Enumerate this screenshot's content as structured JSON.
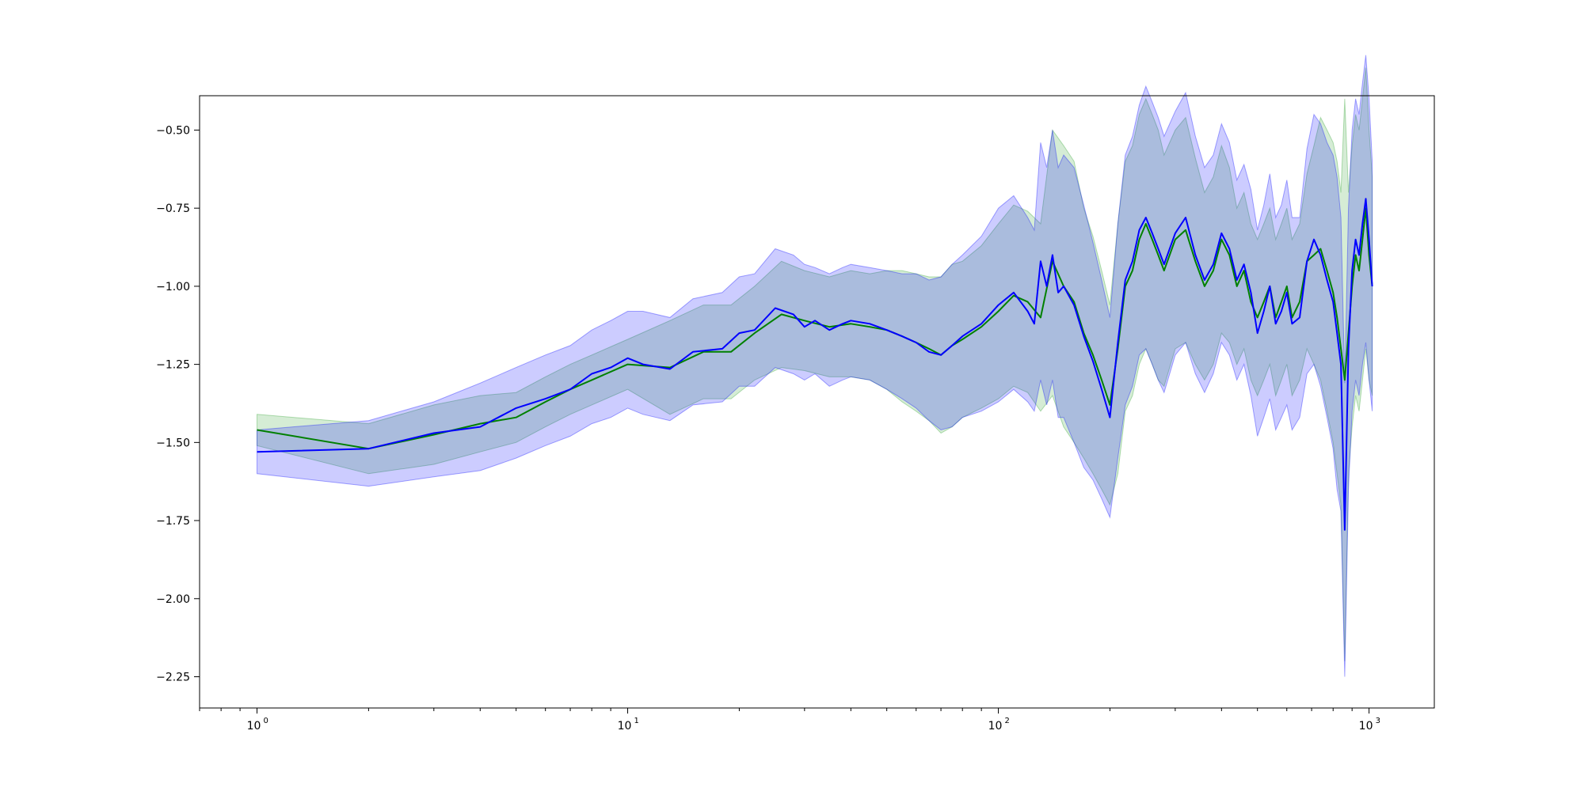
{
  "chart_data": {
    "type": "line",
    "title": "",
    "xlabel": "",
    "ylabel": "",
    "xscale": "log",
    "xlim": [
      0.7,
      1500
    ],
    "ylim": [
      -2.35,
      -0.39
    ],
    "grid": false,
    "legend": "none",
    "x_ticks": [
      {
        "value": 1,
        "label": "10",
        "exp": "0"
      },
      {
        "value": 10,
        "label": "10",
        "exp": "1"
      },
      {
        "value": 100,
        "label": "10",
        "exp": "2"
      },
      {
        "value": 1000,
        "label": "10",
        "exp": "3"
      }
    ],
    "y_ticks": [
      {
        "value": -0.5,
        "label": "−0.50"
      },
      {
        "value": -0.75,
        "label": "−0.75"
      },
      {
        "value": -1.0,
        "label": "−1.00"
      },
      {
        "value": -1.25,
        "label": "−1.25"
      },
      {
        "value": -1.5,
        "label": "−1.50"
      },
      {
        "value": -1.75,
        "label": "−1.75"
      },
      {
        "value": -2.0,
        "label": "−2.00"
      },
      {
        "value": -2.25,
        "label": "−2.25"
      }
    ],
    "series": [
      {
        "color": "#008000",
        "band_color": "#2ca02c",
        "x": [
          1,
          2,
          3,
          4,
          5,
          6,
          7,
          8,
          10,
          13,
          16,
          19,
          22,
          26,
          30,
          35,
          40,
          45,
          50,
          55,
          60,
          65,
          70,
          75,
          80,
          90,
          100,
          110,
          120,
          130,
          140,
          150,
          160,
          170,
          180,
          190,
          200,
          210,
          220,
          230,
          240,
          250,
          260,
          270,
          280,
          300,
          320,
          340,
          360,
          380,
          400,
          420,
          440,
          460,
          480,
          500,
          520,
          540,
          560,
          580,
          600,
          620,
          650,
          680,
          710,
          740,
          770,
          800,
          820,
          840,
          860,
          880,
          900,
          920,
          940,
          960,
          980,
          1000,
          1020
        ],
        "values": [
          -1.46,
          -1.52,
          -1.475,
          -1.44,
          -1.42,
          -1.37,
          -1.33,
          -1.3,
          -1.25,
          -1.26,
          -1.21,
          -1.21,
          -1.15,
          -1.09,
          -1.11,
          -1.13,
          -1.12,
          -1.13,
          -1.14,
          -1.16,
          -1.18,
          -1.2,
          -1.22,
          -1.19,
          -1.17,
          -1.13,
          -1.08,
          -1.03,
          -1.05,
          -1.1,
          -0.92,
          -1.0,
          -1.05,
          -1.15,
          -1.22,
          -1.3,
          -1.38,
          -1.2,
          -1.0,
          -0.95,
          -0.85,
          -0.8,
          -0.85,
          -0.9,
          -0.95,
          -0.85,
          -0.82,
          -0.92,
          -1.0,
          -0.95,
          -0.85,
          -0.9,
          -1.0,
          -0.95,
          -1.05,
          -1.1,
          -1.05,
          -1.0,
          -1.1,
          -1.05,
          -1.0,
          -1.1,
          -1.05,
          -0.92,
          -0.9,
          -0.88,
          -0.95,
          -1.02,
          -1.1,
          -1.2,
          -1.3,
          -1.15,
          -1.0,
          -0.9,
          -0.95,
          -0.85,
          -0.75,
          -0.9,
          -1.0
        ],
        "lower": [
          -1.51,
          -1.6,
          -1.57,
          -1.53,
          -1.5,
          -1.45,
          -1.41,
          -1.38,
          -1.33,
          -1.41,
          -1.36,
          -1.36,
          -1.3,
          -1.26,
          -1.27,
          -1.29,
          -1.29,
          -1.3,
          -1.33,
          -1.37,
          -1.4,
          -1.43,
          -1.47,
          -1.45,
          -1.42,
          -1.39,
          -1.36,
          -1.32,
          -1.34,
          -1.4,
          -1.35,
          -1.45,
          -1.5,
          -1.55,
          -1.6,
          -1.65,
          -1.7,
          -1.6,
          -1.4,
          -1.35,
          -1.25,
          -1.2,
          -1.25,
          -1.3,
          -1.32,
          -1.2,
          -1.18,
          -1.25,
          -1.3,
          -1.25,
          -1.15,
          -1.18,
          -1.25,
          -1.2,
          -1.3,
          -1.35,
          -1.3,
          -1.25,
          -1.35,
          -1.3,
          -1.25,
          -1.35,
          -1.3,
          -1.2,
          -1.25,
          -1.3,
          -1.4,
          -1.5,
          -1.6,
          -1.7,
          -2.2,
          -1.6,
          -1.45,
          -1.35,
          -1.4,
          -1.3,
          -1.2,
          -1.3,
          -1.35
        ],
        "upper": [
          -1.41,
          -1.44,
          -1.38,
          -1.35,
          -1.34,
          -1.29,
          -1.25,
          -1.22,
          -1.17,
          -1.11,
          -1.06,
          -1.06,
          -1.0,
          -0.92,
          -0.95,
          -0.97,
          -0.95,
          -0.96,
          -0.95,
          -0.95,
          -0.96,
          -0.97,
          -0.97,
          -0.93,
          -0.92,
          -0.87,
          -0.8,
          -0.74,
          -0.76,
          -0.8,
          -0.5,
          -0.55,
          -0.6,
          -0.75,
          -0.84,
          -0.95,
          -1.06,
          -0.8,
          -0.6,
          -0.55,
          -0.45,
          -0.4,
          -0.45,
          -0.5,
          -0.58,
          -0.5,
          -0.46,
          -0.59,
          -0.7,
          -0.65,
          -0.55,
          -0.62,
          -0.75,
          -0.7,
          -0.8,
          -0.85,
          -0.8,
          -0.75,
          -0.85,
          -0.8,
          -0.75,
          -0.85,
          -0.8,
          -0.64,
          -0.55,
          -0.46,
          -0.5,
          -0.54,
          -0.6,
          -0.7,
          -0.4,
          -0.7,
          -0.55,
          -0.45,
          -0.5,
          -0.4,
          -0.3,
          -0.5,
          -0.65
        ]
      },
      {
        "color": "#0000ff",
        "band_color": "#0000ff",
        "x": [
          1,
          2,
          3,
          4,
          5,
          6,
          7,
          8,
          9,
          10,
          11,
          13,
          15,
          18,
          20,
          22,
          25,
          28,
          30,
          32,
          35,
          38,
          40,
          45,
          50,
          55,
          60,
          65,
          70,
          75,
          80,
          90,
          100,
          110,
          120,
          125,
          130,
          135,
          140,
          145,
          150,
          160,
          170,
          180,
          190,
          200,
          210,
          220,
          230,
          240,
          250,
          260,
          270,
          280,
          300,
          320,
          340,
          360,
          380,
          400,
          420,
          440,
          460,
          480,
          500,
          520,
          540,
          560,
          580,
          600,
          620,
          650,
          680,
          710,
          740,
          770,
          800,
          820,
          840,
          860,
          880,
          900,
          920,
          940,
          960,
          980,
          1000,
          1020
        ],
        "values": [
          -1.53,
          -1.52,
          -1.47,
          -1.45,
          -1.39,
          -1.36,
          -1.33,
          -1.28,
          -1.26,
          -1.23,
          -1.25,
          -1.265,
          -1.21,
          -1.2,
          -1.15,
          -1.14,
          -1.07,
          -1.09,
          -1.13,
          -1.11,
          -1.14,
          -1.12,
          -1.11,
          -1.12,
          -1.14,
          -1.16,
          -1.18,
          -1.21,
          -1.22,
          -1.19,
          -1.16,
          -1.12,
          -1.06,
          -1.02,
          -1.08,
          -1.12,
          -0.92,
          -1.0,
          -0.9,
          -1.02,
          -1.0,
          -1.06,
          -1.16,
          -1.24,
          -1.33,
          -1.42,
          -1.18,
          -0.98,
          -0.92,
          -0.82,
          -0.78,
          -0.83,
          -0.88,
          -0.93,
          -0.83,
          -0.78,
          -0.9,
          -0.98,
          -0.93,
          -0.83,
          -0.88,
          -0.98,
          -0.93,
          -1.02,
          -1.15,
          -1.08,
          -1.0,
          -1.12,
          -1.08,
          -1.02,
          -1.12,
          -1.1,
          -0.92,
          -0.85,
          -0.9,
          -0.98,
          -1.05,
          -1.15,
          -1.25,
          -1.78,
          -1.2,
          -0.95,
          -0.85,
          -0.9,
          -0.8,
          -0.72,
          -0.85,
          -1.0
        ],
        "lower": [
          -1.6,
          -1.64,
          -1.61,
          -1.59,
          -1.55,
          -1.51,
          -1.48,
          -1.44,
          -1.42,
          -1.39,
          -1.41,
          -1.43,
          -1.38,
          -1.37,
          -1.32,
          -1.32,
          -1.26,
          -1.28,
          -1.3,
          -1.28,
          -1.32,
          -1.3,
          -1.29,
          -1.3,
          -1.33,
          -1.36,
          -1.39,
          -1.43,
          -1.46,
          -1.45,
          -1.42,
          -1.4,
          -1.37,
          -1.33,
          -1.37,
          -1.4,
          -1.3,
          -1.38,
          -1.3,
          -1.42,
          -1.42,
          -1.5,
          -1.58,
          -1.62,
          -1.68,
          -1.74,
          -1.55,
          -1.38,
          -1.32,
          -1.22,
          -1.2,
          -1.25,
          -1.3,
          -1.34,
          -1.22,
          -1.18,
          -1.28,
          -1.34,
          -1.28,
          -1.18,
          -1.22,
          -1.3,
          -1.25,
          -1.35,
          -1.48,
          -1.42,
          -1.36,
          -1.46,
          -1.42,
          -1.38,
          -1.46,
          -1.42,
          -1.28,
          -1.25,
          -1.32,
          -1.42,
          -1.52,
          -1.65,
          -1.72,
          -2.25,
          -1.65,
          -1.4,
          -1.3,
          -1.35,
          -1.25,
          -1.18,
          -1.3,
          -1.4
        ],
        "upper": [
          -1.46,
          -1.43,
          -1.37,
          -1.31,
          -1.26,
          -1.22,
          -1.19,
          -1.14,
          -1.11,
          -1.08,
          -1.08,
          -1.1,
          -1.04,
          -1.02,
          -0.97,
          -0.96,
          -0.88,
          -0.9,
          -0.93,
          -0.94,
          -0.96,
          -0.94,
          -0.93,
          -0.94,
          -0.95,
          -0.96,
          -0.96,
          -0.98,
          -0.97,
          -0.93,
          -0.9,
          -0.84,
          -0.75,
          -0.71,
          -0.78,
          -0.82,
          -0.54,
          -0.62,
          -0.5,
          -0.62,
          -0.58,
          -0.62,
          -0.74,
          -0.86,
          -0.98,
          -1.1,
          -0.8,
          -0.58,
          -0.52,
          -0.42,
          -0.36,
          -0.41,
          -0.46,
          -0.52,
          -0.44,
          -0.38,
          -0.52,
          -0.62,
          -0.58,
          -0.48,
          -0.54,
          -0.66,
          -0.61,
          -0.69,
          -0.82,
          -0.74,
          -0.64,
          -0.78,
          -0.74,
          -0.66,
          -0.78,
          -0.78,
          -0.56,
          -0.45,
          -0.48,
          -0.54,
          -0.58,
          -0.65,
          -0.78,
          -1.31,
          -0.75,
          -0.5,
          -0.4,
          -0.45,
          -0.35,
          -0.26,
          -0.4,
          -0.6
        ]
      }
    ]
  }
}
